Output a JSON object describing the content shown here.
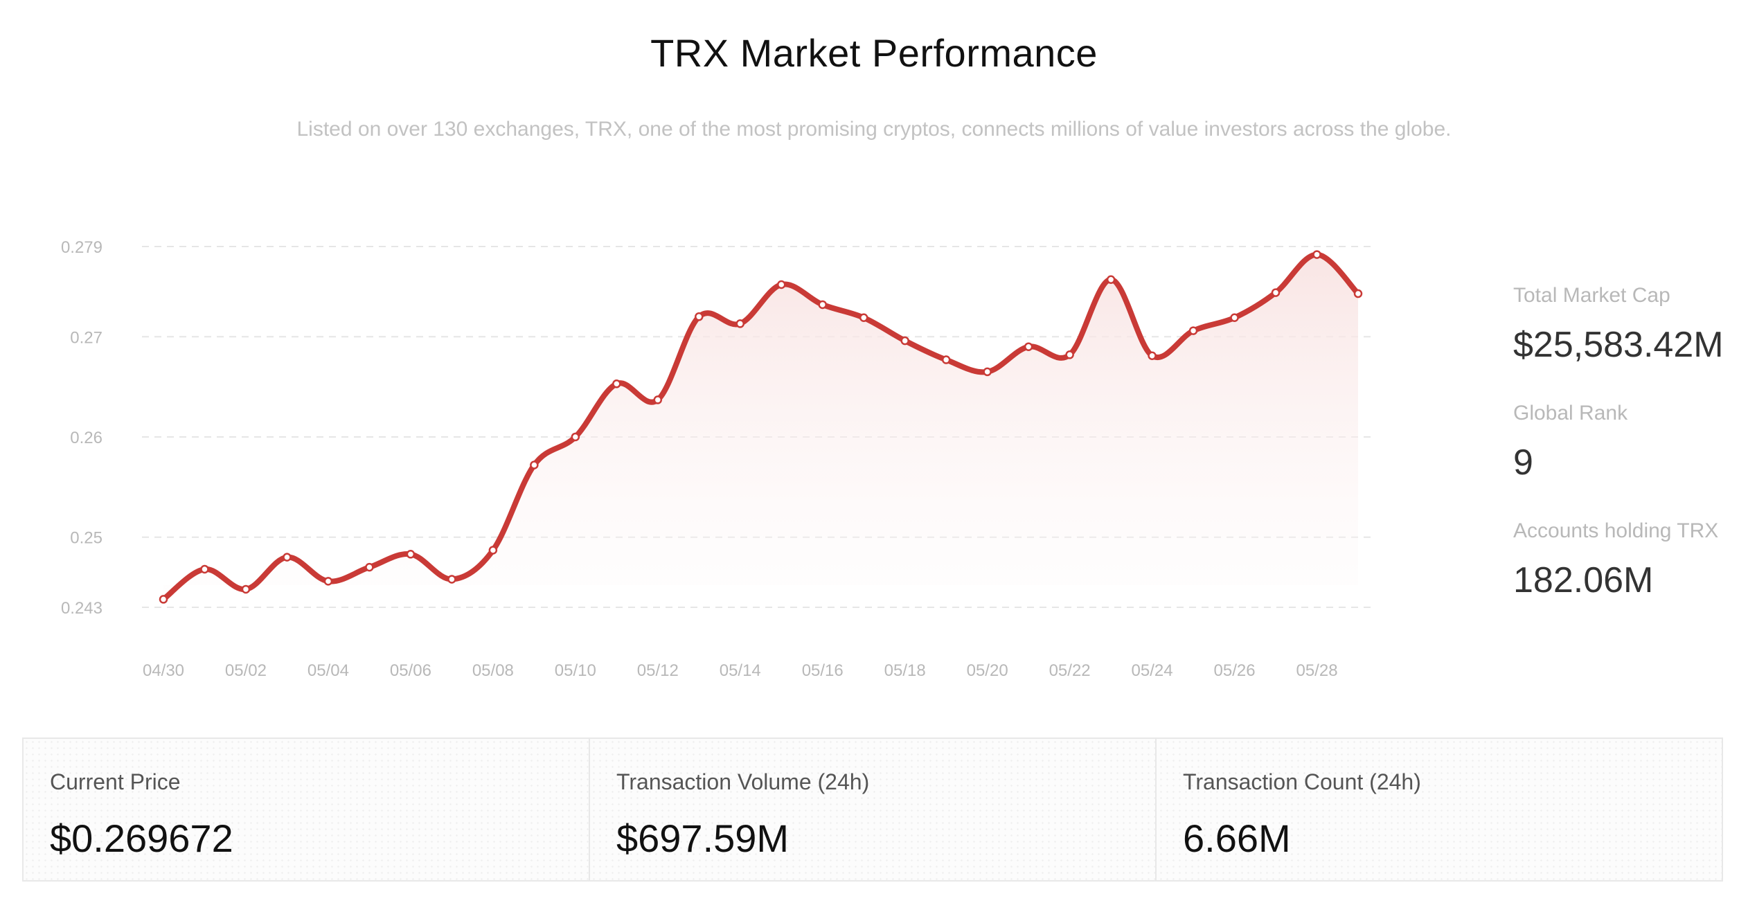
{
  "header": {
    "title": "TRX Market Performance",
    "subtitle": "Listed on over 130 exchanges, TRX, one of the most promising cryptos, connects millions of value investors across the globe."
  },
  "stats": [
    {
      "label": "Total Market Cap",
      "value": "$25,583.42M"
    },
    {
      "label": "Global Rank",
      "value": "9"
    },
    {
      "label": "Accounts holding TRX",
      "value": "182.06M"
    }
  ],
  "cards": [
    {
      "label": "Current Price",
      "value": "$0.269672"
    },
    {
      "label": "Transaction Volume (24h)",
      "value": "$697.59M"
    },
    {
      "label": "Transaction Count (24h)",
      "value": "6.66M"
    }
  ],
  "colors": {
    "line": "#c93a36",
    "area_top": "#f8e2e1",
    "grid": "#e6e6e6",
    "tick": "#b8b8b8"
  },
  "chart_data": {
    "type": "area",
    "title": "",
    "xlabel": "",
    "ylabel": "",
    "grid": true,
    "legend": "none",
    "x": [
      "04/30",
      "05/01",
      "05/02",
      "05/03",
      "05/04",
      "05/05",
      "05/06",
      "05/07",
      "05/08",
      "05/09",
      "05/10",
      "05/11",
      "05/12",
      "05/13",
      "05/14",
      "05/15",
      "05/16",
      "05/17",
      "05/18",
      "05/19",
      "05/20",
      "05/21",
      "05/22",
      "05/23",
      "05/24",
      "05/25",
      "05/26",
      "05/27",
      "05/28",
      "05/29"
    ],
    "x_ticks": [
      "04/30",
      "05/02",
      "05/04",
      "05/06",
      "05/08",
      "05/10",
      "05/12",
      "05/14",
      "05/16",
      "05/18",
      "05/20",
      "05/22",
      "05/24",
      "05/26",
      "05/28"
    ],
    "y_ticks": [
      "0.279",
      "0.27",
      "0.26",
      "0.25",
      "0.243"
    ],
    "ylim": [
      0.243,
      0.279
    ],
    "series": [
      {
        "values": [
          0.2438,
          0.2468,
          0.2448,
          0.248,
          0.2456,
          0.247,
          0.2483,
          0.2458,
          0.2487,
          0.2572,
          0.26,
          0.2653,
          0.2637,
          0.272,
          0.2713,
          0.2752,
          0.2732,
          0.2719,
          0.2696,
          0.2677,
          0.2665,
          0.269,
          0.2682,
          0.2757,
          0.2681,
          0.2706,
          0.2719,
          0.2744,
          0.2782,
          0.2743
        ]
      }
    ]
  }
}
